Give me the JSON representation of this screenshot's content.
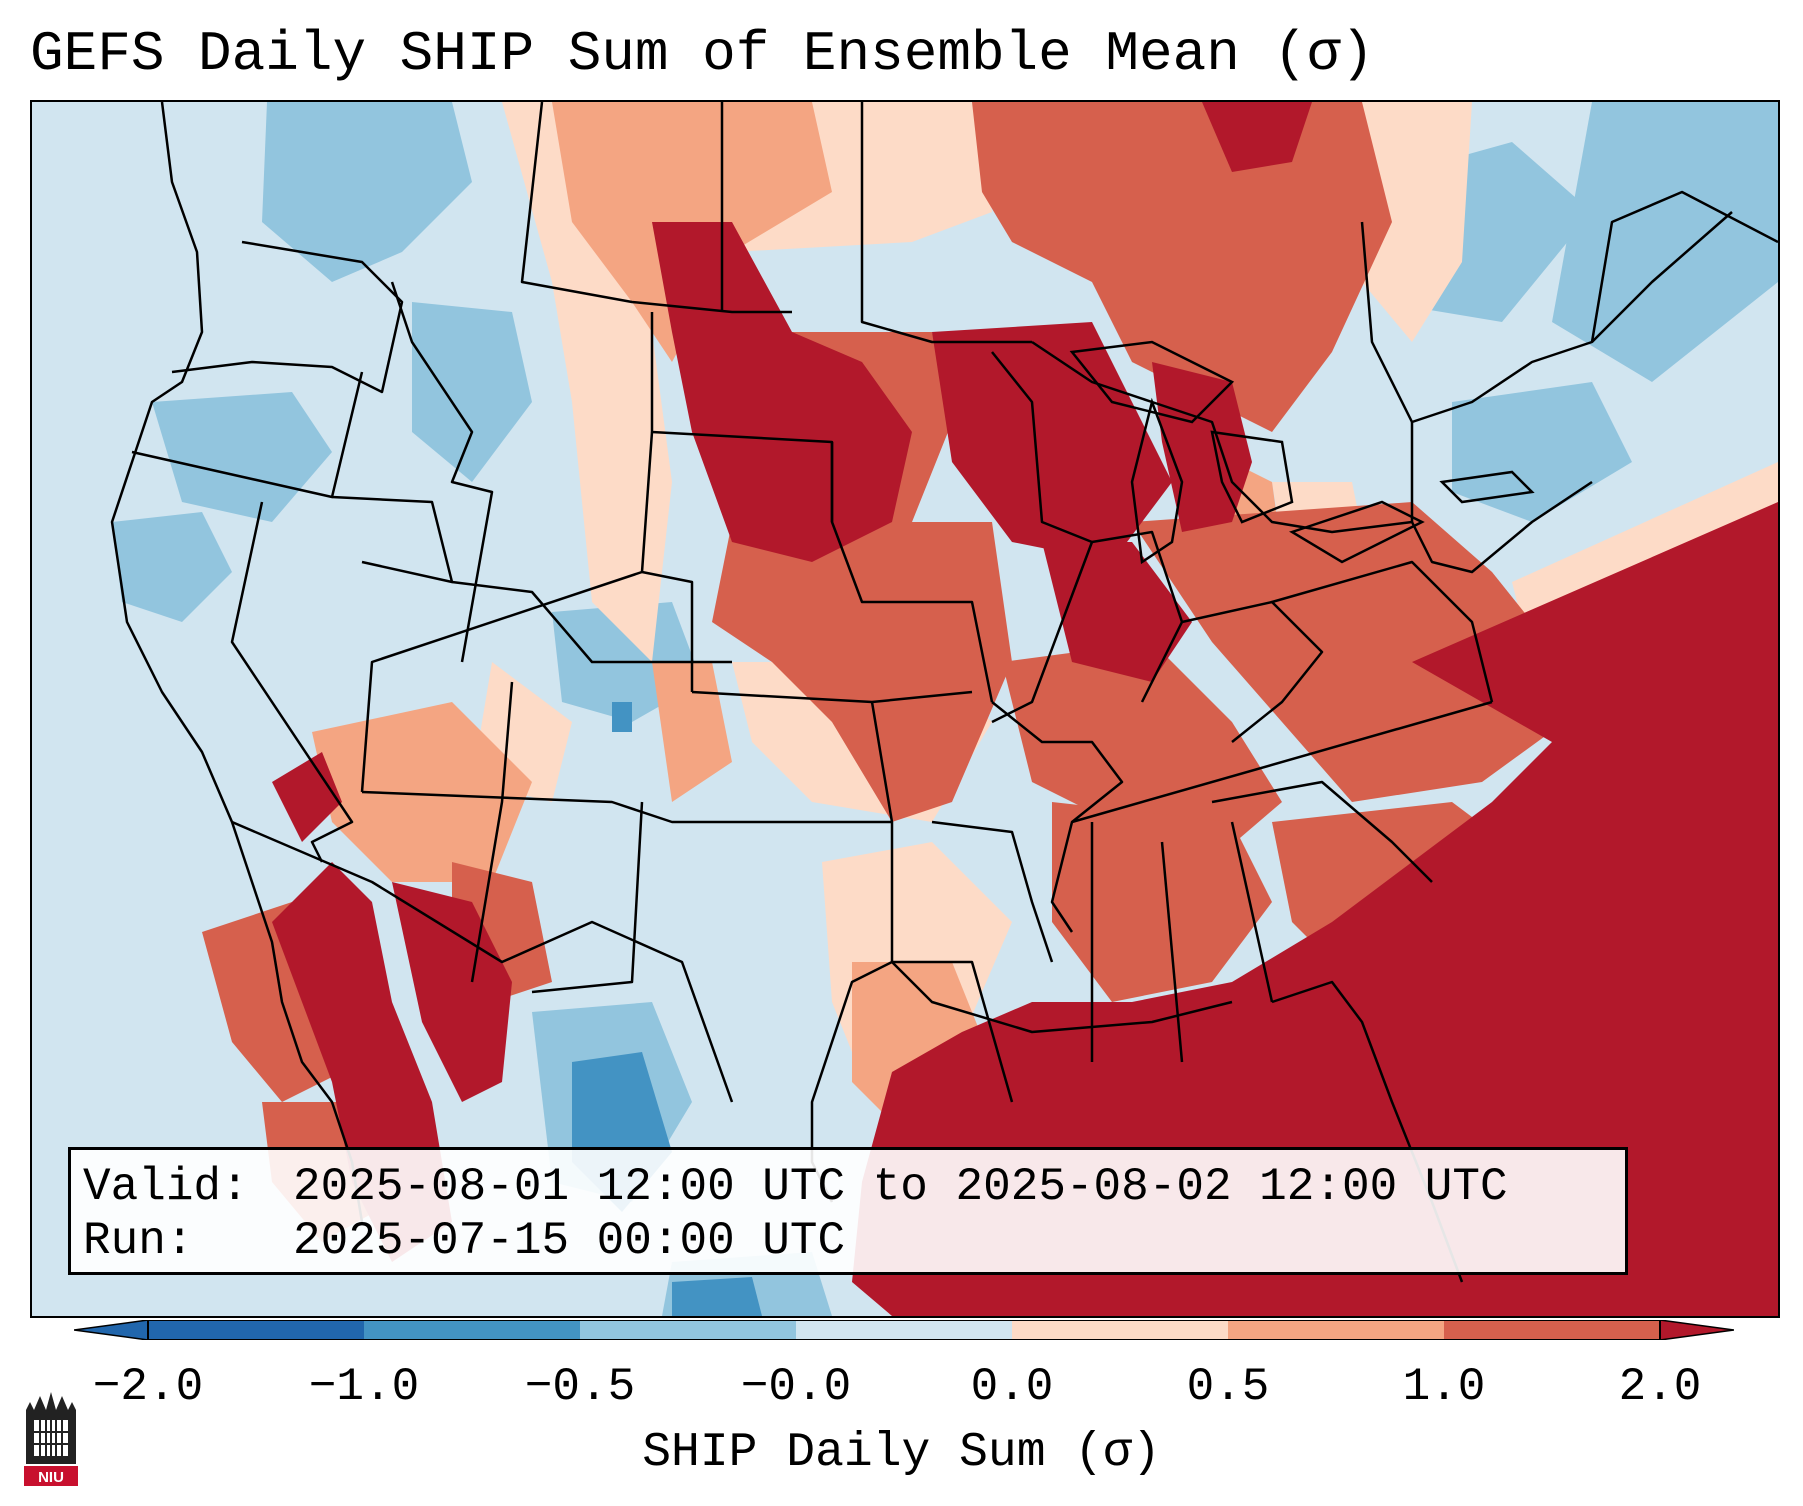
{
  "title": "GEFS Daily SHIP Sum of Ensemble Mean (σ)",
  "info": {
    "valid_label": "Valid:",
    "valid_value": "2025-08-01 12:00 UTC to 2025-08-02 12:00 UTC",
    "run_label": "Run:",
    "run_value": "2025-07-15 00:00 UTC"
  },
  "colorbar": {
    "title": "SHIP Daily Sum (σ)",
    "ticks": [
      "−2.0",
      "−1.0",
      "−0.5",
      "−0.0",
      "0.0",
      "0.5",
      "1.0",
      "2.0"
    ],
    "colors": [
      "#2166ac",
      "#4393c3",
      "#92c5de",
      "#d1e5f0",
      "#ffffff",
      "#fddbc7",
      "#f4a582",
      "#d6604d",
      "#b2182b"
    ]
  },
  "logo": {
    "text": "NIU"
  }
}
